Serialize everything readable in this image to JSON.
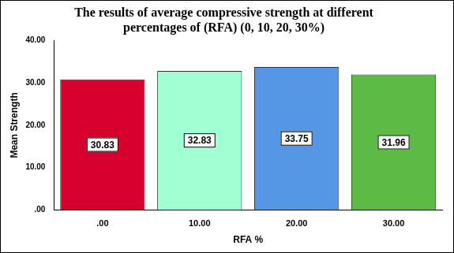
{
  "chart_data": {
    "type": "bar",
    "title": [
      "The results of average compressive strength at different",
      "percentages of (RFA) (0, 10, 20, 30%)"
    ],
    "x_label": "RFA %",
    "y_label": "Mean Strength",
    "categories": [
      ".00",
      "10.00",
      "20.00",
      "30.00"
    ],
    "values": [
      30.83,
      32.83,
      33.75,
      31.96
    ],
    "colors": [
      "#d7002d",
      "#a0ffd2",
      "#5597e4",
      "#5bbb45"
    ],
    "ylim": [
      0,
      40
    ],
    "yticks": [
      {
        "value": 0,
        "label": ".00"
      },
      {
        "value": 10,
        "label": "10.00"
      },
      {
        "value": 20,
        "label": "20.00"
      },
      {
        "value": 30,
        "label": "30.00"
      },
      {
        "value": 40,
        "label": "40.00"
      }
    ],
    "grid": false,
    "data_labels": true
  }
}
